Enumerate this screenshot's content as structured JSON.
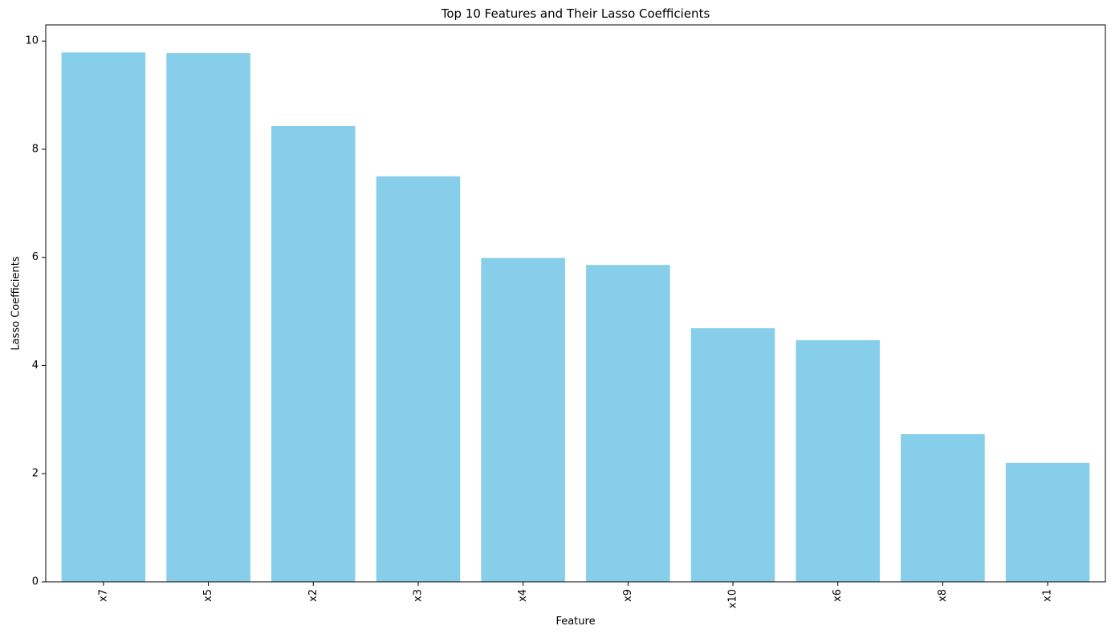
{
  "chart_data": {
    "type": "bar",
    "title": "Top 10 Features and Their Lasso Coefficients",
    "xlabel": "Feature",
    "ylabel": "Lasso Coefficients",
    "categories": [
      "x7",
      "x5",
      "x2",
      "x3",
      "x4",
      "x9",
      "x10",
      "x6",
      "x8",
      "x1"
    ],
    "values": [
      9.79,
      9.78,
      8.43,
      7.5,
      5.99,
      5.86,
      4.69,
      4.47,
      2.73,
      2.2
    ],
    "ylim": [
      0,
      10.3
    ],
    "yticks": [
      0,
      2,
      4,
      6,
      8,
      10
    ],
    "xtick_rotation": "vertical",
    "grid": false,
    "bar_color": "#87CEEB",
    "axis_color": "#000000"
  }
}
